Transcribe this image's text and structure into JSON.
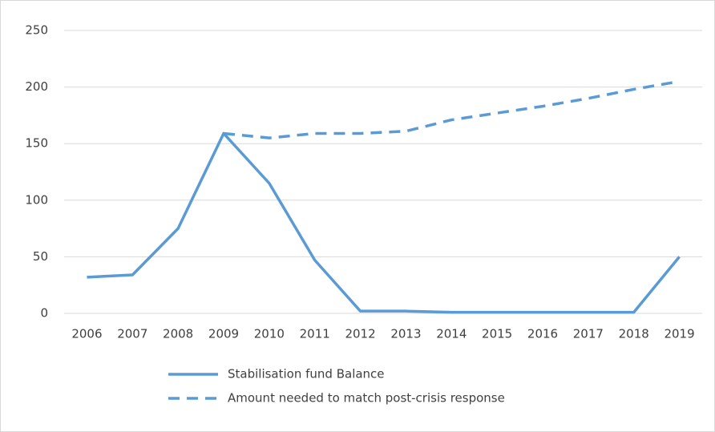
{
  "chart_data": {
    "type": "line",
    "categories": [
      "2006",
      "2007",
      "2008",
      "2009",
      "2010",
      "2011",
      "2012",
      "2013",
      "2014",
      "2015",
      "2016",
      "2017",
      "2018",
      "2019"
    ],
    "series": [
      {
        "name": "Stabilisation fund Balance",
        "color": "#5b9bd5",
        "line_style": "solid",
        "values": [
          32,
          34,
          75,
          159,
          115,
          47,
          2,
          2,
          1,
          1,
          1,
          1,
          1,
          50
        ]
      },
      {
        "name": "Amount needed to match post-crisis response",
        "color": "#5b9bd5",
        "line_style": "dashed",
        "values": [
          null,
          null,
          null,
          159,
          155,
          159,
          159,
          161,
          171,
          177,
          183,
          190,
          198,
          205
        ]
      }
    ],
    "ylim": [
      0,
      250
    ],
    "yticks": [
      0,
      50,
      100,
      150,
      200,
      250
    ],
    "grid": true,
    "legend": "bottom"
  }
}
